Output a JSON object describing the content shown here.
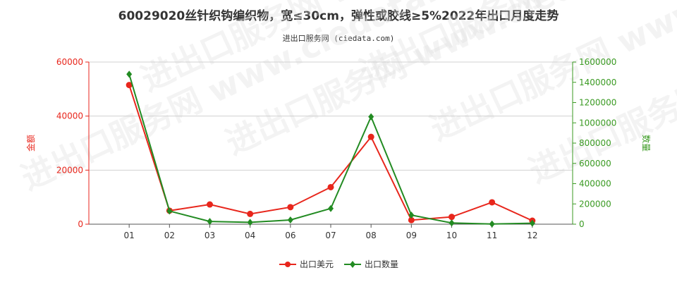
{
  "title": "60029020丝针织钩编织物，宽≤30cm，弹性或胶线≥5%2022年出口月度走势",
  "subtitle": "进出口服务网 (ciedata.com)",
  "watermark": "进出口服务网 www.ciedata.com",
  "colors": {
    "left_axis": "#e8261c",
    "right_axis": "#3a9a22",
    "series_amount": "#e8261c",
    "series_quantity": "#228b22"
  },
  "chart_data": {
    "type": "line",
    "categories": [
      "01",
      "02",
      "03",
      "04",
      "06",
      "07",
      "08",
      "09",
      "10",
      "11",
      "12"
    ],
    "y_left": {
      "label": "金额",
      "ticks": [
        "0",
        "20000",
        "40000",
        "60000"
      ],
      "lim": [
        0,
        60000
      ]
    },
    "y_right": {
      "label": "数量",
      "ticks": [
        "0",
        "200000",
        "400000",
        "600000",
        "800000",
        "1000000",
        "1200000",
        "1400000",
        "1600000"
      ],
      "lim": [
        0,
        1600000
      ]
    },
    "series": [
      {
        "name": "出口美元",
        "axis": "left",
        "marker": "circle",
        "values": [
          51500,
          5000,
          7300,
          3800,
          6300,
          13700,
          32300,
          1500,
          2700,
          8100,
          1300
        ]
      },
      {
        "name": "出口数量",
        "axis": "right",
        "marker": "diamond",
        "values": [
          1480000,
          130000,
          27000,
          18000,
          42000,
          155000,
          1060000,
          90000,
          12000,
          2000,
          10000
        ]
      }
    ],
    "grid": true,
    "legend": "bottom"
  }
}
